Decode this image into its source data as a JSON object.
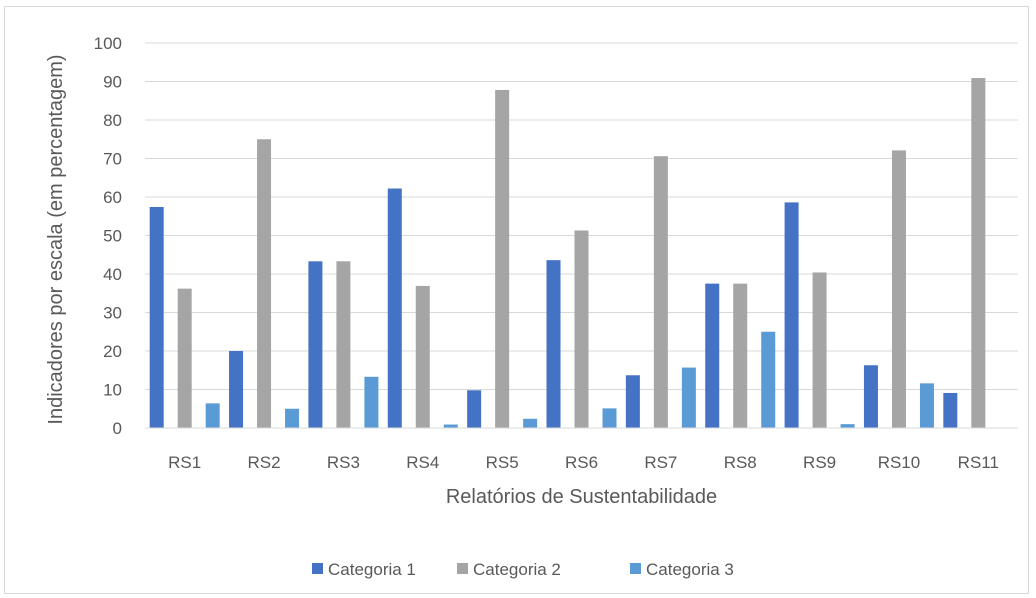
{
  "chart_data": {
    "type": "bar",
    "title": "",
    "xlabel": "Relatórios de Sustentabilidade",
    "ylabel": "Indicadores por escala (em percentagem)",
    "ylim": [
      0,
      100
    ],
    "yticks": [
      0,
      10,
      20,
      30,
      40,
      50,
      60,
      70,
      80,
      90,
      100
    ],
    "grid": true,
    "legend_position": "bottom",
    "categories": [
      "RS1",
      "RS2",
      "RS3",
      "RS4",
      "RS5",
      "RS6",
      "RS7",
      "RS8",
      "RS9",
      "RS10",
      "RS11"
    ],
    "series": [
      {
        "name": "Categoria 1",
        "color": "#4472c4",
        "values": [
          57.4,
          20.0,
          43.3,
          62.2,
          9.8,
          43.6,
          13.7,
          37.5,
          58.6,
          16.3,
          9.1
        ]
      },
      {
        "name": "Categoria 2",
        "color": "#a5a5a5",
        "values": [
          36.2,
          75.0,
          43.3,
          36.9,
          87.8,
          51.3,
          70.6,
          37.5,
          40.4,
          72.1,
          90.9
        ]
      },
      {
        "name": "Categoria 3",
        "color": "#5b9bd5",
        "values": [
          6.4,
          5.0,
          13.3,
          0.9,
          2.4,
          5.1,
          15.7,
          25.0,
          1.0,
          11.6,
          0.0
        ]
      }
    ]
  }
}
